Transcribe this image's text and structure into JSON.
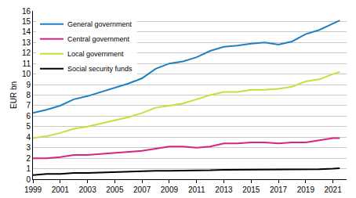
{
  "chart_data": {
    "type": "line",
    "y_label": "EUR bn",
    "x": [
      1999,
      2000,
      2001,
      2002,
      2003,
      2004,
      2005,
      2006,
      2007,
      2008,
      2009,
      2010,
      2011,
      2012,
      2013,
      2014,
      2015,
      2016,
      2017,
      2018,
      2019,
      2020,
      2021,
      2021.5
    ],
    "series": [
      {
        "name": "General government",
        "color": "#1e7fc3",
        "values": [
          6.3,
          6.6,
          7.0,
          7.6,
          7.9,
          8.3,
          8.7,
          9.1,
          9.6,
          10.5,
          11.0,
          11.2,
          11.6,
          12.2,
          12.6,
          12.7,
          12.9,
          13.0,
          12.8,
          13.1,
          13.8,
          14.2,
          14.8,
          15.1
        ]
      },
      {
        "name": "Central government",
        "color": "#d4267e",
        "values": [
          2.0,
          2.0,
          2.1,
          2.3,
          2.3,
          2.4,
          2.5,
          2.6,
          2.7,
          2.9,
          3.1,
          3.1,
          3.0,
          3.1,
          3.4,
          3.4,
          3.5,
          3.5,
          3.4,
          3.5,
          3.5,
          3.7,
          3.9,
          3.9
        ]
      },
      {
        "name": "Local government",
        "color": "#c8de3c",
        "values": [
          3.9,
          4.1,
          4.4,
          4.8,
          5.0,
          5.3,
          5.6,
          5.9,
          6.3,
          6.8,
          7.0,
          7.2,
          7.6,
          8.0,
          8.3,
          8.3,
          8.5,
          8.5,
          8.6,
          8.8,
          9.3,
          9.5,
          10.0,
          10.2
        ]
      },
      {
        "name": "Social security funds",
        "color": "#000000",
        "values": [
          0.4,
          0.5,
          0.5,
          0.6,
          0.6,
          0.65,
          0.7,
          0.7,
          0.75,
          0.8,
          0.8,
          0.8,
          0.85,
          0.85,
          0.9,
          0.9,
          0.9,
          0.9,
          0.9,
          0.9,
          0.95,
          0.95,
          1.0,
          1.05
        ]
      }
    ],
    "xlim": [
      1999,
      2022
    ],
    "xticks": [
      1999,
      2001,
      2003,
      2005,
      2007,
      2009,
      2011,
      2013,
      2015,
      2017,
      2019,
      2021
    ],
    "ylim": [
      0,
      16
    ],
    "yticks": [
      0,
      1,
      2,
      3,
      4,
      5,
      6,
      7,
      8,
      9,
      10,
      11,
      12,
      13,
      14,
      15,
      16
    ],
    "grid": true,
    "legend": "top-left"
  }
}
